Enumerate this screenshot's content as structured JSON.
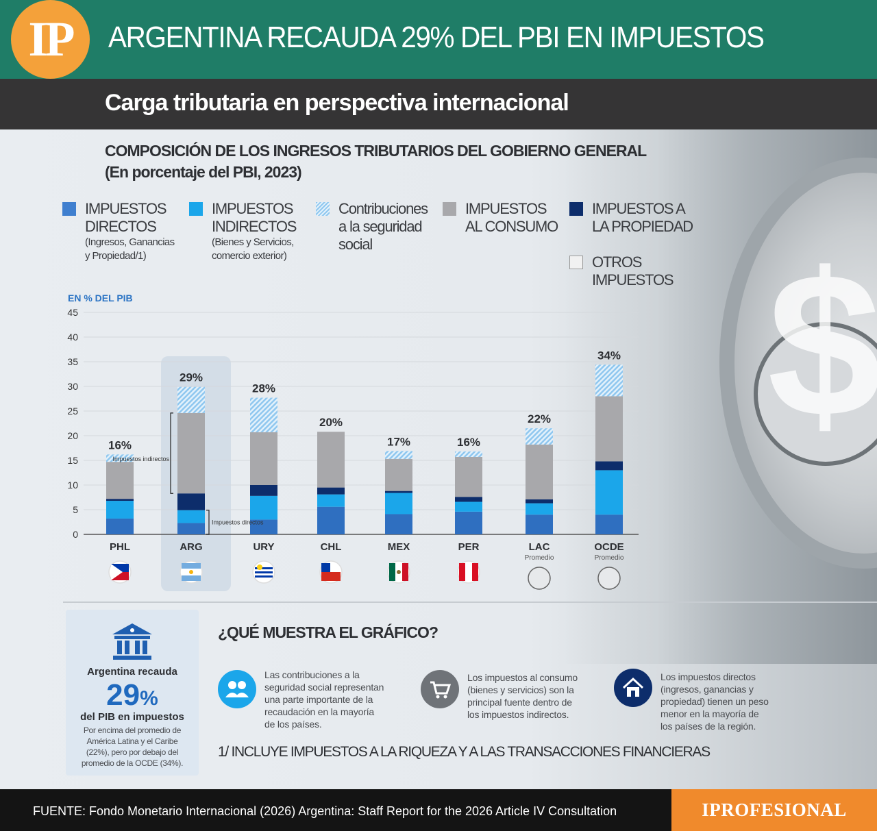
{
  "header": {
    "logo_text": "IP",
    "title": "ARGENTINA RECAUDA 29% DEL PBI EN IMPUESTOS",
    "subtitle": "Carga tributaria en perspectiva internacional"
  },
  "chart_heading": {
    "line1": "COMPOSICIÓN DE LOS INGRESOS TRIBUTARIOS DEL GOBIERNO GENERAL",
    "line2": "(En porcentaje del PBI, 2023)"
  },
  "legend": [
    {
      "label_l1": "IMPUESTOS",
      "label_l2": "DIRECTOS",
      "detail_l1": "(Ingresos, Ganancias",
      "detail_l2": "y Propiedad/1)",
      "color": "#3f7fcf"
    },
    {
      "label_l1": "IMPUESTOS",
      "label_l2": "INDIRECTOS",
      "detail_l1": "(Bienes y Servicios,",
      "detail_l2": "comercio exterior)",
      "color": "#1ba6ea"
    },
    {
      "label_l1": "Contribuciones",
      "label_l2": "a la seguridad",
      "label_l3": "social",
      "color": "#8fc7ef"
    },
    {
      "label_l1": "IMPUESTOS",
      "label_l2": "AL CONSUMO",
      "color": "#a8a8ab"
    },
    {
      "label_l1": "IMPUESTOS A",
      "label_l2": "LA PROPIEDAD",
      "color": "#0d2d6b"
    },
    {
      "label_l1": "OTROS",
      "label_l2": "IMPUESTOS",
      "color": "#f1f1f1"
    }
  ],
  "chart_data": {
    "type": "bar",
    "stacked": true,
    "ylabel": "EN % DEL PIB",
    "ylim": [
      0,
      45
    ],
    "yticks": [
      0,
      5,
      10,
      15,
      20,
      25,
      30,
      35,
      40,
      45
    ],
    "categories": [
      "PHL",
      "ARG",
      "URY",
      "CHL",
      "MEX",
      "PER",
      "LAC",
      "OCDE"
    ],
    "category_sublabels": [
      "",
      "",
      "",
      "",
      "",
      "",
      "Promedio",
      "Promedio"
    ],
    "highlight": "ARG",
    "totals_labels": [
      "16%",
      "29%",
      "28%",
      "20%",
      "17%",
      "16%",
      "22%",
      "34%"
    ],
    "series": [
      {
        "name": "IMPUESTOS DIRECTOS",
        "color": "#2f6fc0",
        "values": [
          3.2,
          2.3,
          3.0,
          5.6,
          4.1,
          4.6,
          4.0,
          4.0
        ]
      },
      {
        "name": "IMPUESTOS INDIRECTOS",
        "color": "#1ba6ea",
        "values": [
          3.6,
          2.6,
          4.8,
          2.5,
          4.3,
          2.0,
          2.3,
          9.0
        ]
      },
      {
        "name": "IMPUESTOS A LA PROPIEDAD",
        "color": "#0d2d6b",
        "values": [
          0.4,
          3.4,
          2.2,
          1.4,
          0.4,
          1.0,
          0.8,
          1.8
        ]
      },
      {
        "name": "IMPUESTOS AL CONSUMO",
        "color": "#a8a8ab",
        "values": [
          7.5,
          16.3,
          10.7,
          11.3,
          6.5,
          8.1,
          11.1,
          13.2
        ]
      },
      {
        "name": "Contribuciones a la seguridad social",
        "color": "#8fc7ef",
        "hatched": true,
        "values": [
          1.5,
          5.3,
          7.0,
          0.0,
          1.6,
          1.1,
          3.3,
          6.4
        ]
      }
    ],
    "annotations": {
      "indirect": "Impuestos indirectos",
      "direct": "Impuestos directos"
    }
  },
  "card": {
    "title": "Argentina recauda",
    "value": "29",
    "unit": "%",
    "sub": "del PIB en impuestos",
    "note_l1": "Por encima del promedio de",
    "note_l2": "América Latina y el Caribe",
    "note_l3": "(22%), pero por debajo del",
    "note_l4": "promedio de la OCDE (34%)."
  },
  "what_shows": {
    "title": "¿QUÉ MUESTRA EL GRÁFICO?",
    "items": [
      {
        "l1": "Las contribuciones a la",
        "l2": "seguridad social representan",
        "l3": "una parte importante de la",
        "l4": "recaudación en la mayoría",
        "l5": "de los países.",
        "icon": "people-icon"
      },
      {
        "l1": "Los impuestos al consumo",
        "l2": "(bienes y servicios) son la",
        "l3": "principal fuente dentro de",
        "l4": "los impuestos indirectos.",
        "l5": "",
        "icon": "cart-icon"
      },
      {
        "l1": "Los impuestos directos",
        "l2": "(ingresos, ganancias y",
        "l3": "propiedad) tienen un peso",
        "l4": "menor en la mayoría de",
        "l5": "los países de la región.",
        "icon": "house-icon"
      }
    ],
    "footnote": "1/ INCLUYE IMPUESTOS A LA RIQUEZA Y A LAS TRANSACCIONES FINANCIERAS"
  },
  "footer": {
    "source": "FUENTE: Fondo Monetario Internacional (2026) Argentina: Staff Report for the 2026 Article IV Consultation",
    "brand": "IPROFESIONAL"
  }
}
